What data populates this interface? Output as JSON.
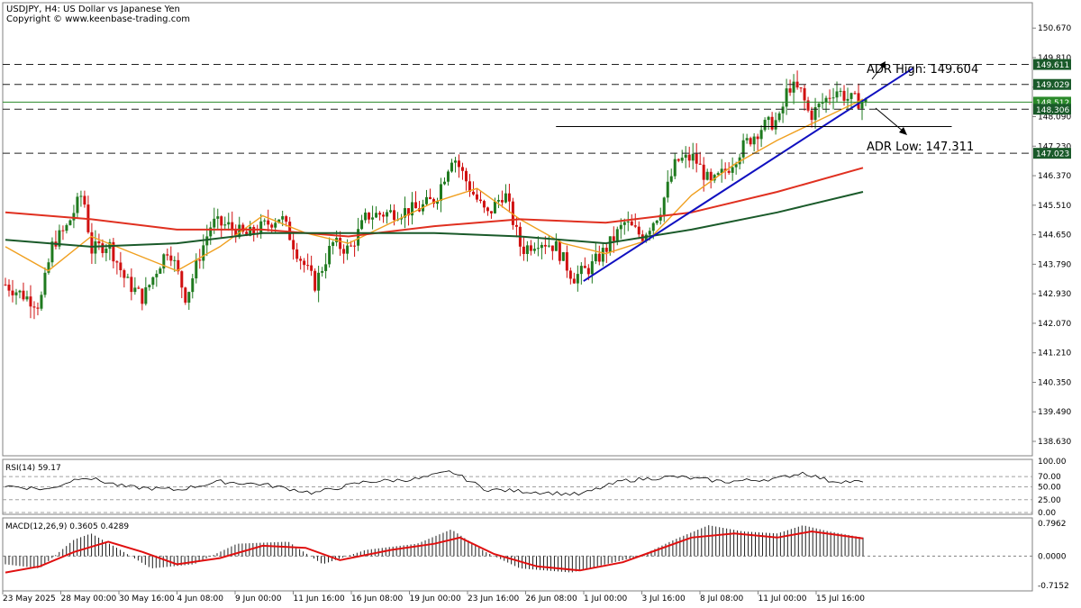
{
  "header": {
    "title": "USDJPY, H4:  US Dollar vs Japanese Yen",
    "copyright": "Copyright © www.keenbase-trading.com"
  },
  "annotations": {
    "adr_high": "ADR High: 149.604",
    "adr_low": "ADR Low: 147.311"
  },
  "price_axis": {
    "ticks": [
      "150.670",
      "149.810",
      "148.950",
      "148.090",
      "147.230",
      "146.370",
      "145.510",
      "144.650",
      "143.790",
      "142.930",
      "142.070",
      "141.210",
      "140.350",
      "139.490",
      "138.630"
    ],
    "tick_values": [
      150.67,
      149.81,
      148.95,
      148.09,
      147.23,
      146.37,
      145.51,
      144.65,
      143.79,
      142.93,
      142.07,
      141.21,
      140.35,
      139.49,
      138.63
    ],
    "levels": [
      {
        "label": "149.611",
        "value": 149.611,
        "style": "dashed"
      },
      {
        "label": "149.029",
        "value": 149.029,
        "style": "dashed"
      },
      {
        "label": "148.512",
        "value": 148.512,
        "style": "current"
      },
      {
        "label": "148.306",
        "value": 148.306,
        "style": "dashed"
      },
      {
        "label": "147.023",
        "value": 147.023,
        "style": "dashed"
      }
    ]
  },
  "rsi": {
    "label": "RSI(14) 59.17",
    "ticks": [
      "100.00",
      "70.00",
      "50.00",
      "25.00",
      "0.00"
    ],
    "tick_values": [
      100,
      70,
      50,
      25,
      0
    ]
  },
  "macd": {
    "label": "MACD(12,26,9) 0.3605 0.4289",
    "ticks": [
      "0.7962",
      "0.0000",
      "-0.7152"
    ],
    "tick_values": [
      0.7962,
      0.0,
      -0.7152
    ]
  },
  "time_axis": {
    "labels": [
      "23 May 2025",
      "28 May 00:00",
      "30 May 16:00",
      "4 Jun 08:00",
      "9 Jun 00:00",
      "11 Jun 16:00",
      "16 Jun 08:00",
      "19 Jun 00:00",
      "23 Jun 16:00",
      "26 Jun 08:00",
      "1 Jul 00:00",
      "3 Jul 16:00",
      "8 Jul 08:00",
      "11 Jul 00:00",
      "15 Jul 16:00"
    ]
  },
  "colors": {
    "bull": "#1f7a1f",
    "bear": "#d01010",
    "ma_fast": "#f0a020",
    "ma_mid": "#e03020",
    "ma_slow": "#1a5a2a",
    "trendline": "#1010c0",
    "macd_signal": "#e01010"
  },
  "chart_data": {
    "type": "candlestick",
    "symbol": "USDJPY",
    "timeframe": "H4",
    "x_start": "23 May 2025",
    "x_end": "17 Jul 2025",
    "price_range": [
      138.0,
      151.2
    ],
    "price_path": [
      {
        "x": 0.0,
        "y": 143.2
      },
      {
        "x": 0.02,
        "y": 142.9
      },
      {
        "x": 0.04,
        "y": 142.6
      },
      {
        "x": 0.055,
        "y": 144.4
      },
      {
        "x": 0.07,
        "y": 144.8
      },
      {
        "x": 0.09,
        "y": 145.9
      },
      {
        "x": 0.1,
        "y": 144.2
      },
      {
        "x": 0.12,
        "y": 144.4
      },
      {
        "x": 0.14,
        "y": 143.3
      },
      {
        "x": 0.16,
        "y": 142.8
      },
      {
        "x": 0.175,
        "y": 143.6
      },
      {
        "x": 0.19,
        "y": 144.3
      },
      {
        "x": 0.21,
        "y": 142.8
      },
      {
        "x": 0.225,
        "y": 144.0
      },
      {
        "x": 0.24,
        "y": 145.0
      },
      {
        "x": 0.26,
        "y": 144.9
      },
      {
        "x": 0.28,
        "y": 144.6
      },
      {
        "x": 0.3,
        "y": 144.9
      },
      {
        "x": 0.32,
        "y": 145.2
      },
      {
        "x": 0.34,
        "y": 144.1
      },
      {
        "x": 0.36,
        "y": 143.2
      },
      {
        "x": 0.38,
        "y": 144.4
      },
      {
        "x": 0.4,
        "y": 144.2
      },
      {
        "x": 0.42,
        "y": 145.2
      },
      {
        "x": 0.45,
        "y": 145.3
      },
      {
        "x": 0.48,
        "y": 145.4
      },
      {
        "x": 0.5,
        "y": 145.7
      },
      {
        "x": 0.52,
        "y": 147.0
      },
      {
        "x": 0.54,
        "y": 146.0
      },
      {
        "x": 0.56,
        "y": 145.2
      },
      {
        "x": 0.58,
        "y": 145.9
      },
      {
        "x": 0.6,
        "y": 144.2
      },
      {
        "x": 0.62,
        "y": 144.5
      },
      {
        "x": 0.64,
        "y": 144.3
      },
      {
        "x": 0.66,
        "y": 143.4
      },
      {
        "x": 0.68,
        "y": 143.7
      },
      {
        "x": 0.7,
        "y": 144.3
      },
      {
        "x": 0.72,
        "y": 145.0
      },
      {
        "x": 0.74,
        "y": 144.6
      },
      {
        "x": 0.76,
        "y": 145.3
      },
      {
        "x": 0.78,
        "y": 146.8
      },
      {
        "x": 0.8,
        "y": 146.9
      },
      {
        "x": 0.82,
        "y": 146.1
      },
      {
        "x": 0.84,
        "y": 146.6
      },
      {
        "x": 0.86,
        "y": 147.3
      },
      {
        "x": 0.88,
        "y": 147.8
      },
      {
        "x": 0.9,
        "y": 148.0
      },
      {
        "x": 0.91,
        "y": 149.0
      },
      {
        "x": 0.925,
        "y": 148.8
      },
      {
        "x": 0.935,
        "y": 148.1
      },
      {
        "x": 0.95,
        "y": 148.5
      },
      {
        "x": 0.965,
        "y": 148.9
      },
      {
        "x": 0.98,
        "y": 148.6
      },
      {
        "x": 1.0,
        "y": 148.5
      }
    ],
    "moving_averages": [
      {
        "name": "fast",
        "path": [
          [
            0,
            144.3
          ],
          [
            0.05,
            143.6
          ],
          [
            0.1,
            144.6
          ],
          [
            0.15,
            144.1
          ],
          [
            0.2,
            143.6
          ],
          [
            0.25,
            144.3
          ],
          [
            0.3,
            145.2
          ],
          [
            0.35,
            144.7
          ],
          [
            0.4,
            144.4
          ],
          [
            0.45,
            145.0
          ],
          [
            0.5,
            145.6
          ],
          [
            0.55,
            146.0
          ],
          [
            0.6,
            145.1
          ],
          [
            0.65,
            144.4
          ],
          [
            0.7,
            144.1
          ],
          [
            0.75,
            144.5
          ],
          [
            0.8,
            145.8
          ],
          [
            0.85,
            146.7
          ],
          [
            0.9,
            147.4
          ],
          [
            0.95,
            148.0
          ],
          [
            1.0,
            148.6
          ]
        ]
      },
      {
        "name": "mid",
        "path": [
          [
            0,
            145.3
          ],
          [
            0.1,
            145.1
          ],
          [
            0.2,
            144.8
          ],
          [
            0.3,
            144.8
          ],
          [
            0.4,
            144.6
          ],
          [
            0.5,
            144.9
          ],
          [
            0.6,
            145.1
          ],
          [
            0.7,
            145.0
          ],
          [
            0.8,
            145.3
          ],
          [
            0.9,
            145.9
          ],
          [
            1.0,
            146.6
          ]
        ]
      },
      {
        "name": "slow",
        "path": [
          [
            0,
            144.5
          ],
          [
            0.1,
            144.3
          ],
          [
            0.2,
            144.4
          ],
          [
            0.3,
            144.7
          ],
          [
            0.4,
            144.7
          ],
          [
            0.5,
            144.7
          ],
          [
            0.6,
            144.6
          ],
          [
            0.7,
            144.4
          ],
          [
            0.8,
            144.8
          ],
          [
            0.9,
            145.3
          ],
          [
            1.0,
            145.9
          ]
        ]
      }
    ],
    "trendline": {
      "from": [
        0.672,
        143.3
      ],
      "to": [
        1.055,
        149.5
      ]
    },
    "resistance_line": {
      "from": [
        0.64,
        147.8
      ],
      "to": [
        1.1,
        147.8
      ]
    },
    "rsi_path": [
      [
        0,
        52
      ],
      [
        0.05,
        45
      ],
      [
        0.09,
        70
      ],
      [
        0.14,
        50
      ],
      [
        0.2,
        44
      ],
      [
        0.25,
        60
      ],
      [
        0.3,
        55
      ],
      [
        0.36,
        38
      ],
      [
        0.42,
        60
      ],
      [
        0.48,
        65
      ],
      [
        0.52,
        80
      ],
      [
        0.56,
        45
      ],
      [
        0.62,
        40
      ],
      [
        0.67,
        35
      ],
      [
        0.72,
        62
      ],
      [
        0.78,
        70
      ],
      [
        0.84,
        60
      ],
      [
        0.9,
        66
      ],
      [
        0.93,
        78
      ],
      [
        0.96,
        62
      ],
      [
        1.0,
        59
      ]
    ],
    "macd_hist": [
      [
        0,
        -0.2
      ],
      [
        0.04,
        -0.3
      ],
      [
        0.08,
        0.4
      ],
      [
        0.1,
        0.55
      ],
      [
        0.13,
        0.2
      ],
      [
        0.17,
        -0.3
      ],
      [
        0.22,
        -0.2
      ],
      [
        0.27,
        0.3
      ],
      [
        0.33,
        0.35
      ],
      [
        0.37,
        -0.2
      ],
      [
        0.42,
        0.15
      ],
      [
        0.48,
        0.3
      ],
      [
        0.52,
        0.65
      ],
      [
        0.56,
        0.1
      ],
      [
        0.6,
        -0.3
      ],
      [
        0.66,
        -0.4
      ],
      [
        0.7,
        -0.2
      ],
      [
        0.74,
        0.0
      ],
      [
        0.78,
        0.4
      ],
      [
        0.82,
        0.75
      ],
      [
        0.86,
        0.6
      ],
      [
        0.9,
        0.55
      ],
      [
        0.93,
        0.75
      ],
      [
        0.96,
        0.6
      ],
      [
        1.0,
        0.45
      ]
    ],
    "macd_signal": [
      [
        0,
        -0.4
      ],
      [
        0.04,
        -0.25
      ],
      [
        0.08,
        0.1
      ],
      [
        0.12,
        0.35
      ],
      [
        0.16,
        0.1
      ],
      [
        0.2,
        -0.2
      ],
      [
        0.25,
        -0.05
      ],
      [
        0.3,
        0.25
      ],
      [
        0.35,
        0.2
      ],
      [
        0.39,
        -0.1
      ],
      [
        0.45,
        0.15
      ],
      [
        0.5,
        0.3
      ],
      [
        0.53,
        0.45
      ],
      [
        0.57,
        0.05
      ],
      [
        0.62,
        -0.25
      ],
      [
        0.67,
        -0.35
      ],
      [
        0.72,
        -0.15
      ],
      [
        0.76,
        0.15
      ],
      [
        0.8,
        0.45
      ],
      [
        0.85,
        0.55
      ],
      [
        0.9,
        0.45
      ],
      [
        0.94,
        0.6
      ],
      [
        1.0,
        0.43
      ]
    ]
  }
}
